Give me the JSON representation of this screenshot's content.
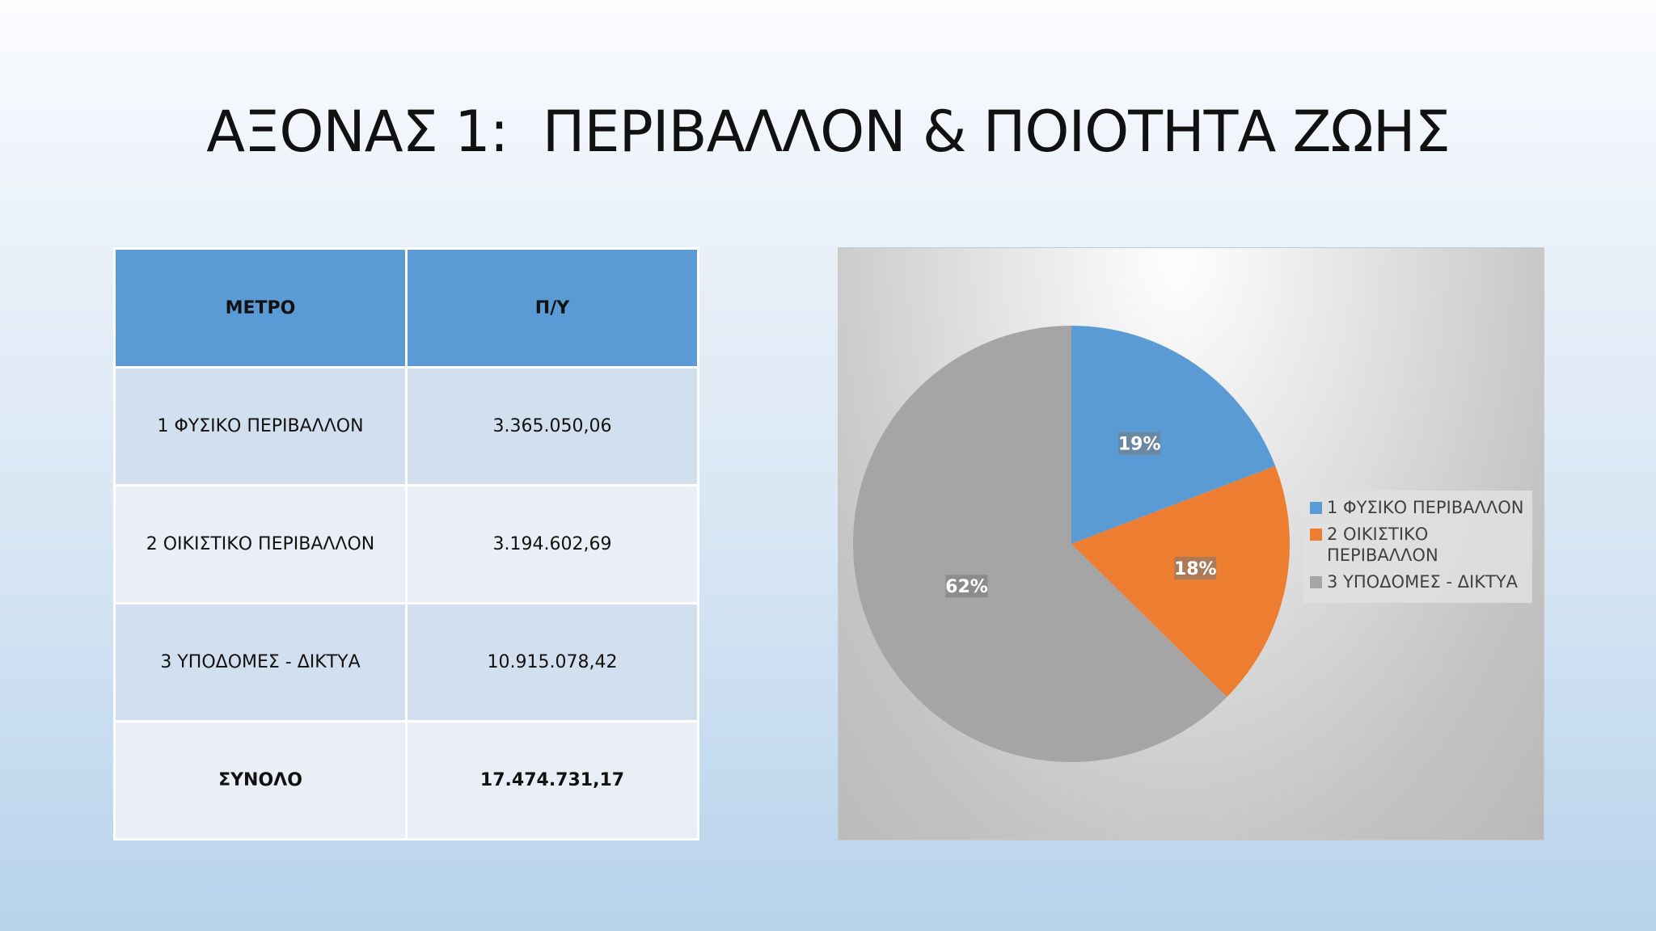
{
  "slide": {
    "title": "ΑΞΟΝΑΣ 1:  ΠΕΡΙΒΑΛΛΟΝ & ΠΟΙΟΤΗΤΑ ΖΩΗΣ"
  },
  "table": {
    "headers": [
      "ΜΕΤΡΟ",
      "Π/Υ"
    ],
    "rows": [
      [
        "1 ΦΥΣΙΚΟ ΠΕΡΙΒΑΛΛΟΝ",
        "3.365.050,06"
      ],
      [
        "2 ΟΙΚΙΣΤΙΚΟ ΠΕΡΙΒΑΛΛΟΝ",
        "3.194.602,69"
      ],
      [
        "3 ΥΠΟΔΟΜΕΣ - ΔΙΚΤΥΑ",
        "10.915.078,42"
      ]
    ],
    "total": [
      "ΣΥΝΟΛΟ",
      "17.474.731,17"
    ]
  },
  "chart_data": {
    "type": "pie",
    "categories": [
      "1 ΦΥΣΙΚΟ ΠΕΡΙΒΑΛΛΟΝ",
      "2 ΟΙΚΙΣΤΙΚΟ ΠΕΡΙΒΑΛΛΟΝ",
      "3 ΥΠΟΔΟΜΕΣ - ΔΙΚΤΥΑ"
    ],
    "values": [
      19,
      18,
      62
    ],
    "data_labels": [
      "19%",
      "18%",
      "62%"
    ],
    "colors": [
      "#5b9bd5",
      "#ed7d31",
      "#a5a5a5"
    ],
    "legend_placement": "right"
  }
}
